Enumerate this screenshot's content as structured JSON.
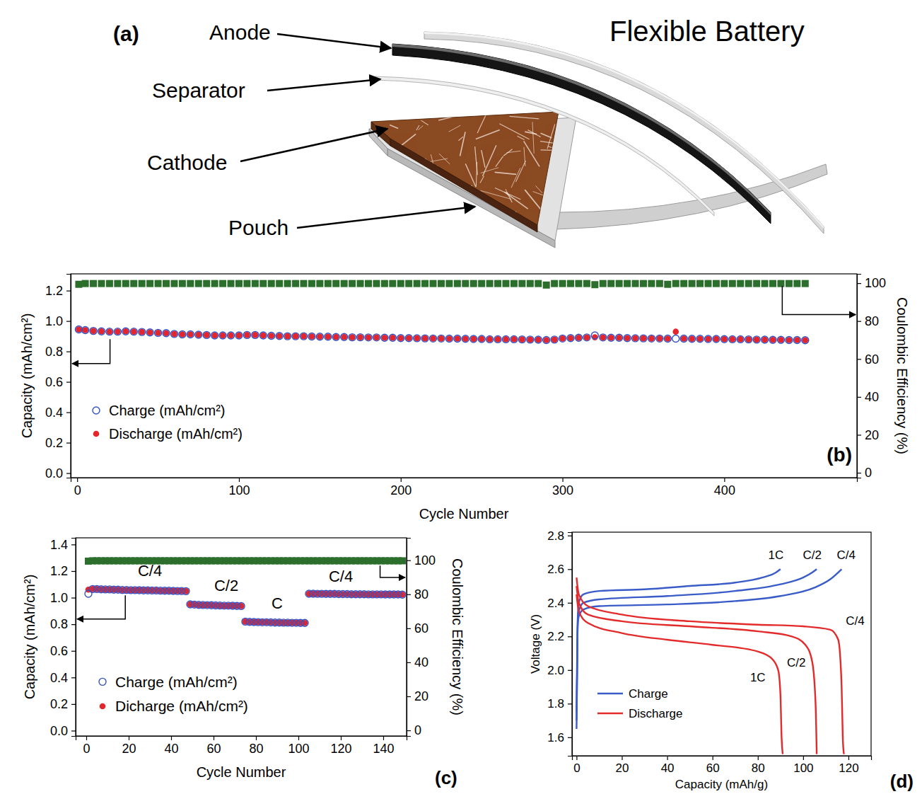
{
  "diagram": {
    "panel": "(a)",
    "title": "Flexible Battery",
    "labels": [
      "Anode",
      "Separator",
      "Cathode",
      "Pouch"
    ]
  },
  "chart_data": [
    {
      "type": "scatter",
      "panel": "(b)",
      "x_label": "Cycle Number",
      "y_label": "Capacity (mAh/cm²)",
      "y2_label": "Coulombic Efficiency (%)",
      "xlim": [
        -4,
        482
      ],
      "xticks": [
        0,
        100,
        200,
        300,
        400
      ],
      "ylim": [
        -0.03,
        1.31
      ],
      "yticks": [
        {
          "value": 0,
          "label": "0.0"
        },
        0.2,
        0.4,
        0.6,
        0.8,
        {
          "value": 1,
          "label": "1.0"
        },
        1.2
      ],
      "y2lim": [
        -2.6,
        104.9
      ],
      "y2ticks": [
        0,
        20,
        40,
        60,
        80,
        100
      ],
      "legend": "lower left",
      "x": [
        1,
        5,
        10,
        15,
        20,
        25,
        30,
        35,
        40,
        45,
        50,
        55,
        60,
        65,
        70,
        75,
        80,
        85,
        90,
        95,
        100,
        105,
        110,
        115,
        120,
        125,
        130,
        135,
        140,
        145,
        150,
        155,
        160,
        165,
        170,
        175,
        180,
        185,
        190,
        195,
        200,
        205,
        210,
        215,
        220,
        225,
        230,
        235,
        240,
        245,
        250,
        255,
        260,
        265,
        270,
        275,
        280,
        285,
        290,
        295,
        300,
        305,
        310,
        315,
        320,
        325,
        330,
        335,
        340,
        345,
        350,
        355,
        360,
        365,
        370,
        375,
        380,
        385,
        390,
        395,
        400,
        405,
        410,
        415,
        420,
        425,
        430,
        435,
        440,
        445,
        450
      ],
      "series": [
        {
          "name": "Charge (mAh/cm²)",
          "color": "#3552c4",
          "marker": "open_circle",
          "values": [
            0.945,
            0.94,
            0.935,
            0.932,
            0.93,
            0.93,
            0.932,
            0.93,
            0.928,
            0.925,
            0.922,
            0.92,
            0.915,
            0.912,
            0.912,
            0.91,
            0.908,
            0.905,
            0.905,
            0.905,
            0.905,
            0.908,
            0.908,
            0.905,
            0.903,
            0.902,
            0.9,
            0.9,
            0.9,
            0.898,
            0.897,
            0.897,
            0.895,
            0.895,
            0.893,
            0.893,
            0.892,
            0.892,
            0.89,
            0.89,
            0.888,
            0.888,
            0.887,
            0.886,
            0.885,
            0.885,
            0.884,
            0.884,
            0.883,
            0.882,
            0.882,
            0.88,
            0.88,
            0.88,
            0.88,
            0.879,
            0.878,
            0.877,
            0.875,
            0.878,
            0.885,
            0.888,
            0.89,
            0.892,
            0.905,
            0.892,
            0.89,
            0.89,
            0.888,
            0.887,
            0.886,
            0.885,
            0.885,
            0.884,
            0.884,
            0.884,
            0.883,
            0.883,
            0.882,
            0.882,
            0.881,
            0.88,
            0.88,
            0.879,
            0.878,
            0.877,
            0.876,
            0.876,
            0.875,
            0.875,
            0.874
          ]
        },
        {
          "name": "Discharge (mAh/cm²)",
          "color": "#e4262c",
          "marker": "circle",
          "values": [
            0.945,
            0.94,
            0.935,
            0.932,
            0.93,
            0.93,
            0.932,
            0.93,
            0.928,
            0.925,
            0.922,
            0.92,
            0.915,
            0.912,
            0.912,
            0.91,
            0.908,
            0.905,
            0.905,
            0.905,
            0.905,
            0.908,
            0.908,
            0.905,
            0.903,
            0.902,
            0.9,
            0.9,
            0.9,
            0.898,
            0.897,
            0.897,
            0.895,
            0.895,
            0.893,
            0.893,
            0.892,
            0.892,
            0.89,
            0.89,
            0.888,
            0.888,
            0.887,
            0.886,
            0.885,
            0.885,
            0.884,
            0.884,
            0.883,
            0.882,
            0.882,
            0.88,
            0.88,
            0.88,
            0.88,
            0.879,
            0.878,
            0.877,
            0.875,
            0.878,
            0.885,
            0.888,
            0.89,
            0.892,
            0.893,
            0.892,
            0.89,
            0.89,
            0.888,
            0.887,
            0.886,
            0.885,
            0.885,
            0.884,
            0.93,
            0.884,
            0.883,
            0.883,
            0.882,
            0.882,
            0.881,
            0.88,
            0.88,
            0.879,
            0.878,
            0.877,
            0.876,
            0.876,
            0.875,
            0.875,
            0.874
          ]
        },
        {
          "color": "#2c6e2c",
          "marker": "square",
          "axis": "y2",
          "values": [
            99.4,
            99.8,
            99.8,
            99.8,
            99.8,
            99.8,
            99.8,
            99.8,
            99.8,
            99.8,
            99.8,
            99.8,
            99.8,
            99.8,
            99.8,
            99.8,
            99.8,
            99.8,
            99.8,
            99.8,
            99.8,
            99.8,
            99.8,
            99.8,
            99.8,
            99.8,
            99.8,
            99.8,
            99.8,
            99.8,
            99.8,
            99.8,
            99.8,
            99.8,
            99.8,
            99.8,
            99.8,
            99.8,
            99.8,
            99.8,
            99.8,
            99.8,
            99.8,
            99.8,
            99.8,
            99.8,
            99.8,
            99.8,
            99.8,
            99.8,
            99.8,
            99.8,
            99.8,
            99.8,
            99.8,
            99.8,
            99.8,
            99.8,
            99.0,
            99.8,
            99.8,
            99.8,
            99.8,
            99.8,
            99.2,
            99.8,
            99.8,
            99.8,
            99.8,
            99.8,
            99.8,
            99.8,
            99.8,
            99.4,
            99.8,
            99.8,
            99.8,
            99.8,
            99.8,
            99.8,
            99.8,
            99.8,
            99.8,
            99.8,
            99.8,
            99.8,
            99.8,
            99.8,
            99.8,
            99.8,
            99.8
          ]
        }
      ]
    },
    {
      "type": "scatter",
      "panel": "(c)",
      "x_label": "Cycle Number",
      "y_label": "Capacity (mAh/cm²)",
      "y2_label": "Coulombic Efficiency (%)",
      "xlim": [
        -5,
        151
      ],
      "xticks": [
        0,
        20,
        40,
        60,
        80,
        100,
        120,
        140
      ],
      "ylim": [
        -0.04,
        1.45
      ],
      "yticks": [
        {
          "value": 0,
          "label": "0.0"
        },
        0.2,
        0.4,
        0.6,
        0.8,
        {
          "value": 1,
          "label": "1.0"
        },
        1.2,
        1.4
      ],
      "y2lim": [
        -3.3,
        113.2
      ],
      "y2ticks": [
        0,
        20,
        40,
        60,
        80,
        100
      ],
      "legend": "lower left",
      "annotations": [
        {
          "text": "C/4",
          "x": 30,
          "y": 1.16
        },
        {
          "text": "C/2",
          "x": 66,
          "y": 1.05
        },
        {
          "text": "C",
          "x": 90,
          "y": 0.92
        },
        {
          "text": "C/4",
          "x": 120,
          "y": 1.12
        }
      ],
      "x": [
        1,
        3,
        5,
        7,
        9,
        11,
        13,
        15,
        17,
        19,
        21,
        23,
        25,
        27,
        29,
        31,
        33,
        35,
        37,
        39,
        41,
        43,
        45,
        47,
        49,
        51,
        53,
        55,
        57,
        59,
        61,
        63,
        65,
        67,
        69,
        71,
        73,
        75,
        77,
        79,
        81,
        83,
        85,
        87,
        89,
        91,
        93,
        95,
        97,
        99,
        101,
        103,
        105,
        107,
        109,
        111,
        113,
        115,
        117,
        119,
        121,
        123,
        125,
        127,
        129,
        131,
        133,
        135,
        137,
        139,
        141,
        143,
        145,
        147,
        149
      ],
      "series": [
        {
          "name": "Charge (mAh/cm²)",
          "color": "#3552c4",
          "marker": "open_circle",
          "values": [
            1.03,
            1.065,
            1.065,
            1.063,
            1.062,
            1.062,
            1.06,
            1.06,
            1.058,
            1.058,
            1.057,
            1.057,
            1.056,
            1.055,
            1.055,
            1.054,
            1.054,
            1.053,
            1.052,
            1.052,
            1.051,
            1.05,
            1.05,
            1.049,
            0.95,
            0.948,
            0.946,
            0.945,
            0.944,
            0.943,
            0.942,
            0.941,
            0.94,
            0.94,
            0.939,
            0.938,
            0.937,
            0.82,
            0.818,
            0.817,
            0.816,
            0.815,
            0.815,
            0.814,
            0.813,
            0.813,
            0.812,
            0.812,
            0.811,
            0.811,
            0.81,
            0.81,
            1.03,
            1.03,
            1.029,
            1.029,
            1.028,
            1.028,
            1.028,
            1.027,
            1.027,
            1.027,
            1.026,
            1.026,
            1.026,
            1.026,
            1.025,
            1.025,
            1.025,
            1.025,
            1.024,
            1.024,
            1.024,
            1.024,
            1.023
          ]
        },
        {
          "name": "Dicharge (mAh/cm²)",
          "color": "#e4262c",
          "marker": "circle",
          "values": [
            1.06,
            1.065,
            1.065,
            1.063,
            1.062,
            1.062,
            1.06,
            1.06,
            1.058,
            1.058,
            1.057,
            1.057,
            1.056,
            1.055,
            1.055,
            1.054,
            1.054,
            1.053,
            1.052,
            1.052,
            1.051,
            1.05,
            1.05,
            1.049,
            0.95,
            0.948,
            0.946,
            0.945,
            0.944,
            0.943,
            0.942,
            0.941,
            0.94,
            0.94,
            0.939,
            0.938,
            0.937,
            0.82,
            0.818,
            0.817,
            0.816,
            0.815,
            0.815,
            0.814,
            0.813,
            0.813,
            0.812,
            0.812,
            0.811,
            0.811,
            0.81,
            0.81,
            1.03,
            1.03,
            1.029,
            1.029,
            1.028,
            1.028,
            1.028,
            1.027,
            1.027,
            1.027,
            1.026,
            1.026,
            1.026,
            1.026,
            1.025,
            1.025,
            1.025,
            1.025,
            1.024,
            1.024,
            1.024,
            1.024,
            1.023
          ]
        },
        {
          "color": "#2c6e2c",
          "marker": "square",
          "axis": "y2",
          "values": [
            99.5,
            99.7,
            99.7,
            99.7,
            99.7,
            99.7,
            99.7,
            99.7,
            99.7,
            99.7,
            99.7,
            99.7,
            99.7,
            99.7,
            99.7,
            99.7,
            99.7,
            99.7,
            99.7,
            99.7,
            99.7,
            99.7,
            99.7,
            99.7,
            99.7,
            99.7,
            99.7,
            99.7,
            99.7,
            99.7,
            99.7,
            99.7,
            99.7,
            99.7,
            99.7,
            99.7,
            99.7,
            99.7,
            99.7,
            99.7,
            99.7,
            99.7,
            99.7,
            99.7,
            99.7,
            99.7,
            99.7,
            99.7,
            99.7,
            99.7,
            99.7,
            99.7,
            99.7,
            99.7,
            99.7,
            99.7,
            99.7,
            99.7,
            99.7,
            99.7,
            99.7,
            99.7,
            99.7,
            99.7,
            99.7,
            99.7,
            99.7,
            99.7,
            99.7,
            99.7,
            99.7,
            99.7,
            99.7,
            99.7,
            99.7
          ]
        }
      ]
    },
    {
      "type": "line",
      "panel": "(d)",
      "x_label": "Capacity (mAh/g)",
      "y_label": "Voltage (V)",
      "xlim": [
        -2,
        130
      ],
      "xticks": [
        0,
        20,
        40,
        60,
        80,
        100,
        120
      ],
      "ylim": [
        1.49,
        2.82
      ],
      "yticks": [
        1.6,
        1.8,
        {
          "value": 2,
          "label": "2.0"
        },
        2.2,
        2.4,
        2.6,
        2.8
      ],
      "legend": "lower left",
      "annotations": [
        {
          "text": "1C",
          "x": 88,
          "y": 2.66
        },
        {
          "text": "C/2",
          "x": 104,
          "y": 2.66
        },
        {
          "text": "C/4",
          "x": 119,
          "y": 2.66
        },
        {
          "text": "C/4",
          "x": 123,
          "y": 2.27
        },
        {
          "text": "C/2",
          "x": 97,
          "y": 2.02
        },
        {
          "text": "1C",
          "x": 80,
          "y": 1.93
        }
      ],
      "series": [
        {
          "name": "Charge",
          "color": "#3a5cc8",
          "line_style": "solid",
          "curves": [
            {
              "x": [
                0,
                0.5,
                1,
                3,
                10,
                30,
                50,
                70,
                82,
                88,
                90
              ],
              "values": [
                1.65,
                2.3,
                2.4,
                2.45,
                2.47,
                2.48,
                2.5,
                2.52,
                2.55,
                2.58,
                2.6
              ]
            },
            {
              "x": [
                0,
                0.5,
                1,
                3,
                10,
                40,
                70,
                90,
                100,
                104,
                106
              ],
              "values": [
                1.7,
                2.28,
                2.35,
                2.4,
                2.42,
                2.44,
                2.47,
                2.51,
                2.55,
                2.58,
                2.6
              ]
            },
            {
              "x": [
                0,
                0.5,
                1,
                3,
                10,
                40,
                70,
                90,
                105,
                112,
                117
              ],
              "values": [
                1.75,
                2.26,
                2.32,
                2.36,
                2.38,
                2.39,
                2.41,
                2.44,
                2.49,
                2.54,
                2.6
              ]
            }
          ]
        },
        {
          "name": "Discharge",
          "color": "#e32b2b",
          "line_style": "solid",
          "curves": [
            {
              "x": [
                0,
                1,
                5,
                20,
                40,
                60,
                80,
                86,
                89,
                90,
                90.5,
                91
              ],
              "values": [
                2.45,
                2.35,
                2.28,
                2.22,
                2.18,
                2.15,
                2.11,
                2.07,
                2.0,
                1.85,
                1.6,
                1.5
              ]
            },
            {
              "x": [
                0,
                1,
                5,
                20,
                50,
                80,
                95,
                101,
                104,
                105.5,
                106
              ],
              "values": [
                2.5,
                2.4,
                2.33,
                2.29,
                2.26,
                2.23,
                2.2,
                2.15,
                2.05,
                1.8,
                1.5
              ]
            },
            {
              "x": [
                0,
                1,
                5,
                20,
                50,
                80,
                100,
                112,
                115.5,
                117,
                117.5,
                118
              ],
              "values": [
                2.55,
                2.45,
                2.38,
                2.33,
                2.29,
                2.27,
                2.26,
                2.24,
                2.18,
                1.9,
                1.6,
                1.5
              ]
            }
          ]
        }
      ]
    }
  ]
}
